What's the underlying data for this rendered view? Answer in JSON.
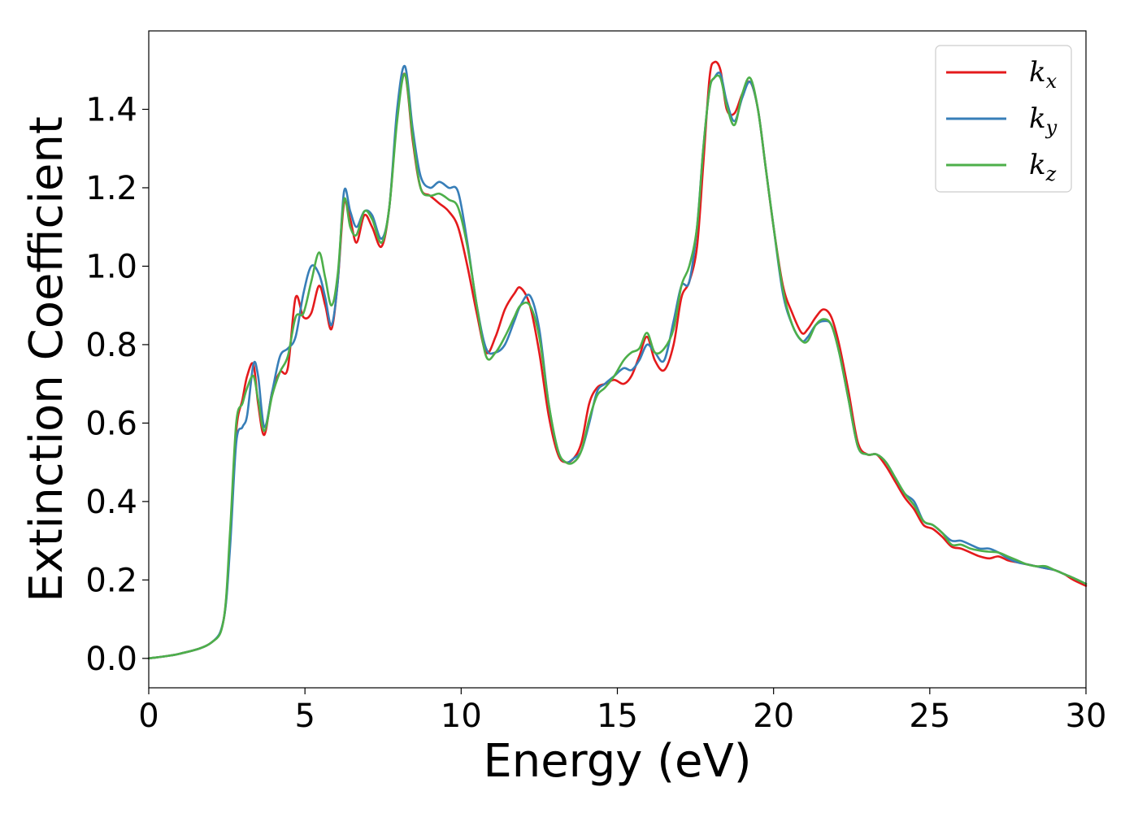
{
  "chart_data": {
    "type": "line",
    "xlabel": "Energy (eV)",
    "ylabel": "Extinction Coefficient",
    "xlim": [
      0,
      30
    ],
    "ylim": [
      -0.075,
      1.6
    ],
    "xticks": [
      0,
      5,
      10,
      15,
      20,
      25,
      30
    ],
    "yticks": [
      0.0,
      0.2,
      0.4,
      0.6,
      0.8,
      1.0,
      1.2,
      1.4
    ],
    "grid": false,
    "legend_position": "top-right",
    "series": [
      {
        "name": "k",
        "subscript": "x",
        "color": "#e41a1c",
        "x": [
          0,
          1,
          2,
          2.4,
          2.6,
          2.8,
          3.0,
          3.15,
          3.35,
          3.5,
          3.7,
          3.95,
          4.2,
          4.45,
          4.7,
          4.95,
          5.2,
          5.45,
          5.65,
          5.85,
          6.05,
          6.25,
          6.45,
          6.65,
          6.9,
          7.15,
          7.45,
          7.7,
          7.95,
          8.2,
          8.45,
          8.7,
          9.0,
          9.3,
          9.6,
          9.9,
          10.2,
          10.5,
          10.8,
          11.1,
          11.4,
          11.7,
          11.9,
          12.2,
          12.5,
          12.8,
          13.1,
          13.35,
          13.6,
          13.85,
          14.1,
          14.35,
          14.6,
          14.9,
          15.2,
          15.45,
          15.7,
          15.95,
          16.2,
          16.5,
          16.8,
          17.05,
          17.3,
          17.55,
          17.75,
          17.95,
          18.1,
          18.3,
          18.5,
          18.75,
          19.0,
          19.25,
          19.5,
          19.75,
          20.0,
          20.3,
          20.6,
          20.9,
          21.1,
          21.35,
          21.6,
          21.85,
          22.1,
          22.4,
          22.7,
          23.0,
          23.3,
          23.6,
          23.9,
          24.2,
          24.5,
          24.8,
          25.1,
          25.4,
          25.7,
          26.0,
          26.3,
          26.6,
          26.9,
          27.2,
          27.5,
          27.8,
          28.1,
          28.4,
          28.7,
          29.0,
          29.3,
          29.6,
          30
        ],
        "y": [
          0.0,
          0.012,
          0.04,
          0.1,
          0.3,
          0.58,
          0.66,
          0.72,
          0.75,
          0.65,
          0.57,
          0.68,
          0.73,
          0.74,
          0.92,
          0.87,
          0.88,
          0.95,
          0.9,
          0.84,
          0.96,
          1.16,
          1.12,
          1.06,
          1.13,
          1.1,
          1.05,
          1.15,
          1.38,
          1.49,
          1.32,
          1.2,
          1.18,
          1.16,
          1.14,
          1.1,
          1.0,
          0.88,
          0.78,
          0.82,
          0.89,
          0.93,
          0.945,
          0.9,
          0.78,
          0.62,
          0.52,
          0.5,
          0.51,
          0.55,
          0.65,
          0.69,
          0.7,
          0.71,
          0.7,
          0.72,
          0.77,
          0.82,
          0.76,
          0.735,
          0.8,
          0.92,
          0.96,
          1.05,
          1.26,
          1.48,
          1.52,
          1.5,
          1.4,
          1.39,
          1.44,
          1.47,
          1.4,
          1.25,
          1.1,
          0.95,
          0.88,
          0.83,
          0.84,
          0.87,
          0.89,
          0.87,
          0.8,
          0.68,
          0.55,
          0.52,
          0.52,
          0.49,
          0.45,
          0.41,
          0.38,
          0.34,
          0.33,
          0.31,
          0.285,
          0.28,
          0.27,
          0.26,
          0.255,
          0.26,
          0.25,
          0.245,
          0.24,
          0.235,
          0.23,
          0.225,
          0.215,
          0.2,
          0.185
        ]
      },
      {
        "name": "k",
        "subscript": "y",
        "color": "#377eb8",
        "x": [
          0,
          1,
          2,
          2.4,
          2.6,
          2.8,
          3.0,
          3.15,
          3.35,
          3.5,
          3.7,
          3.95,
          4.2,
          4.45,
          4.7,
          4.95,
          5.2,
          5.45,
          5.65,
          5.85,
          6.05,
          6.25,
          6.45,
          6.65,
          6.9,
          7.15,
          7.45,
          7.7,
          7.95,
          8.2,
          8.45,
          8.7,
          9.0,
          9.3,
          9.6,
          9.9,
          10.2,
          10.5,
          10.8,
          11.1,
          11.4,
          11.7,
          11.9,
          12.2,
          12.5,
          12.8,
          13.1,
          13.35,
          13.6,
          13.85,
          14.1,
          14.35,
          14.6,
          14.9,
          15.2,
          15.45,
          15.7,
          15.95,
          16.2,
          16.5,
          16.8,
          17.05,
          17.3,
          17.55,
          17.75,
          17.95,
          18.1,
          18.3,
          18.5,
          18.75,
          19.0,
          19.25,
          19.5,
          19.75,
          20.0,
          20.3,
          20.6,
          20.9,
          21.1,
          21.35,
          21.6,
          21.85,
          22.1,
          22.4,
          22.7,
          23.0,
          23.3,
          23.6,
          23.9,
          24.2,
          24.5,
          24.8,
          25.1,
          25.4,
          25.7,
          26.0,
          26.3,
          26.6,
          26.9,
          27.2,
          27.5,
          27.8,
          28.1,
          28.4,
          28.7,
          29.0,
          29.3,
          29.6,
          30
        ],
        "y": [
          0.0,
          0.012,
          0.04,
          0.1,
          0.28,
          0.55,
          0.59,
          0.62,
          0.75,
          0.72,
          0.59,
          0.68,
          0.77,
          0.79,
          0.82,
          0.93,
          1.0,
          0.98,
          0.92,
          0.85,
          0.96,
          1.19,
          1.14,
          1.1,
          1.14,
          1.13,
          1.07,
          1.15,
          1.4,
          1.51,
          1.35,
          1.23,
          1.2,
          1.215,
          1.2,
          1.19,
          1.06,
          0.9,
          0.79,
          0.78,
          0.8,
          0.86,
          0.9,
          0.925,
          0.84,
          0.65,
          0.53,
          0.5,
          0.51,
          0.53,
          0.6,
          0.68,
          0.7,
          0.72,
          0.74,
          0.735,
          0.76,
          0.8,
          0.78,
          0.76,
          0.86,
          0.95,
          0.96,
          1.1,
          1.3,
          1.45,
          1.48,
          1.49,
          1.42,
          1.37,
          1.43,
          1.47,
          1.4,
          1.25,
          1.1,
          0.93,
          0.85,
          0.81,
          0.82,
          0.85,
          0.86,
          0.85,
          0.78,
          0.66,
          0.54,
          0.52,
          0.52,
          0.5,
          0.46,
          0.42,
          0.4,
          0.35,
          0.34,
          0.32,
          0.3,
          0.3,
          0.29,
          0.28,
          0.28,
          0.27,
          0.255,
          0.245,
          0.24,
          0.235,
          0.23,
          0.225,
          0.215,
          0.205,
          0.19
        ]
      },
      {
        "name": "k",
        "subscript": "z",
        "color": "#4daf4a",
        "x": [
          0,
          1,
          2,
          2.4,
          2.6,
          2.8,
          3.0,
          3.15,
          3.35,
          3.5,
          3.7,
          3.95,
          4.2,
          4.45,
          4.7,
          4.95,
          5.2,
          5.45,
          5.65,
          5.85,
          6.05,
          6.25,
          6.45,
          6.65,
          6.9,
          7.15,
          7.45,
          7.7,
          7.95,
          8.2,
          8.45,
          8.7,
          9.0,
          9.3,
          9.6,
          9.9,
          10.2,
          10.5,
          10.8,
          11.1,
          11.4,
          11.7,
          11.9,
          12.2,
          12.5,
          12.8,
          13.1,
          13.35,
          13.6,
          13.85,
          14.1,
          14.35,
          14.6,
          14.9,
          15.2,
          15.45,
          15.7,
          15.95,
          16.2,
          16.5,
          16.8,
          17.05,
          17.3,
          17.55,
          17.75,
          17.95,
          18.1,
          18.3,
          18.5,
          18.75,
          19.0,
          19.25,
          19.5,
          19.75,
          20.0,
          20.3,
          20.6,
          20.9,
          21.1,
          21.35,
          21.6,
          21.85,
          22.1,
          22.4,
          22.7,
          23.0,
          23.3,
          23.6,
          23.9,
          24.2,
          24.5,
          24.8,
          25.1,
          25.4,
          25.7,
          26.0,
          26.3,
          26.6,
          26.9,
          27.2,
          27.5,
          27.8,
          28.1,
          28.4,
          28.7,
          29.0,
          29.3,
          29.6,
          30
        ],
        "y": [
          0.0,
          0.012,
          0.04,
          0.1,
          0.32,
          0.6,
          0.65,
          0.69,
          0.72,
          0.66,
          0.58,
          0.67,
          0.73,
          0.77,
          0.87,
          0.88,
          0.96,
          1.035,
          0.97,
          0.9,
          0.98,
          1.17,
          1.1,
          1.08,
          1.14,
          1.12,
          1.06,
          1.15,
          1.37,
          1.49,
          1.33,
          1.2,
          1.18,
          1.185,
          1.17,
          1.15,
          1.05,
          0.9,
          0.77,
          0.78,
          0.82,
          0.87,
          0.9,
          0.9,
          0.82,
          0.65,
          0.53,
          0.5,
          0.5,
          0.53,
          0.61,
          0.67,
          0.69,
          0.72,
          0.76,
          0.78,
          0.79,
          0.83,
          0.78,
          0.79,
          0.84,
          0.95,
          1.0,
          1.1,
          1.3,
          1.45,
          1.48,
          1.48,
          1.41,
          1.36,
          1.44,
          1.48,
          1.4,
          1.25,
          1.1,
          0.94,
          0.85,
          0.81,
          0.81,
          0.85,
          0.865,
          0.85,
          0.78,
          0.66,
          0.54,
          0.52,
          0.52,
          0.5,
          0.46,
          0.42,
          0.39,
          0.35,
          0.34,
          0.32,
          0.29,
          0.29,
          0.28,
          0.275,
          0.272,
          0.27,
          0.26,
          0.25,
          0.24,
          0.235,
          0.235,
          0.225,
          0.215,
          0.205,
          0.19
        ]
      }
    ]
  }
}
